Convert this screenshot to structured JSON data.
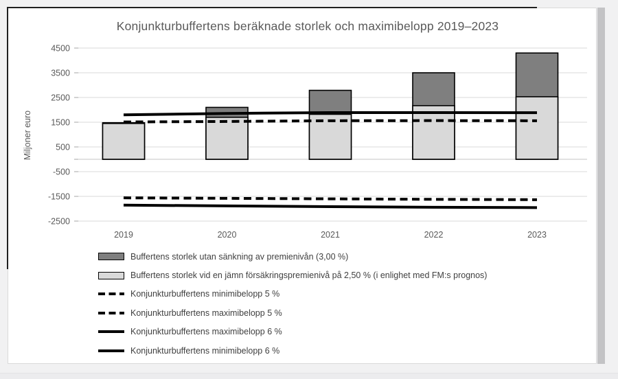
{
  "page": {
    "background_color": "#f1f1f2",
    "card_color": "#ffffff",
    "dark_border_color": "#1f1f1f",
    "right_strip_color": "#c3c3c5"
  },
  "chart_data": {
    "type": "bar",
    "subtype": "overlapped bars with reference lines",
    "title": "Konjunkturbuffertens beräknade storlek och maximibelopp 2019–2023",
    "ylabel": "Miljoner euro",
    "xlabel": "",
    "categories": [
      "2019",
      "2020",
      "2021",
      "2022",
      "2023"
    ],
    "y_ticks": [
      4500,
      3500,
      2500,
      1500,
      500,
      -500,
      -1500,
      -2500
    ],
    "ylim": [
      -2750,
      4750
    ],
    "grid": true,
    "legend_position": "bottom-left",
    "gridline_color": "#d9d9d9",
    "axis_color": "#c6c6c6",
    "tick_label_color": "#595959",
    "series": [
      {
        "name": "Buffertens storlek utan sänkning av premienivån (3,00 %)",
        "kind": "bar",
        "color": "#7f7f7f",
        "border": "#000000",
        "values": [
          1480,
          2100,
          2790,
          3500,
          4300
        ]
      },
      {
        "name": "Buffertens storlek vid en jämn försäkringspremienivå på 2,50 % (i enlighet med FM:s prognos)",
        "kind": "bar",
        "color": "#d9d9d9",
        "border": "#000000",
        "values": [
          1450,
          1700,
          1820,
          2170,
          2530
        ]
      },
      {
        "name": "Konjunkturbuffertens minimibelopp 5 %",
        "kind": "line",
        "style": "dashed",
        "color": "#000000",
        "values": [
          -1560,
          -1580,
          -1600,
          -1620,
          -1635
        ]
      },
      {
        "name": "Konjunkturbuffertens maximibelopp 5 %",
        "kind": "line",
        "style": "dashed",
        "color": "#000000",
        "values": [
          1510,
          1530,
          1560,
          1565,
          1560
        ]
      },
      {
        "name": "Konjunkturbuffertens maximibelopp 6 %",
        "kind": "line",
        "style": "solid",
        "color": "#000000",
        "values": [
          1800,
          1855,
          1890,
          1890,
          1885
        ]
      },
      {
        "name": "Konjunkturbuffertens minimibelopp 6 %",
        "kind": "line",
        "style": "solid",
        "color": "#000000",
        "values": [
          -1855,
          -1885,
          -1915,
          -1940,
          -1955
        ]
      }
    ],
    "legend_order": [
      0,
      1,
      2,
      3,
      4,
      5
    ],
    "notes": "Bars overlap (not stacked): the 3,00 % series is drawn behind the 2,50 % series. Reference lines span only from first to last category center. Zero tick is unlabeled."
  }
}
